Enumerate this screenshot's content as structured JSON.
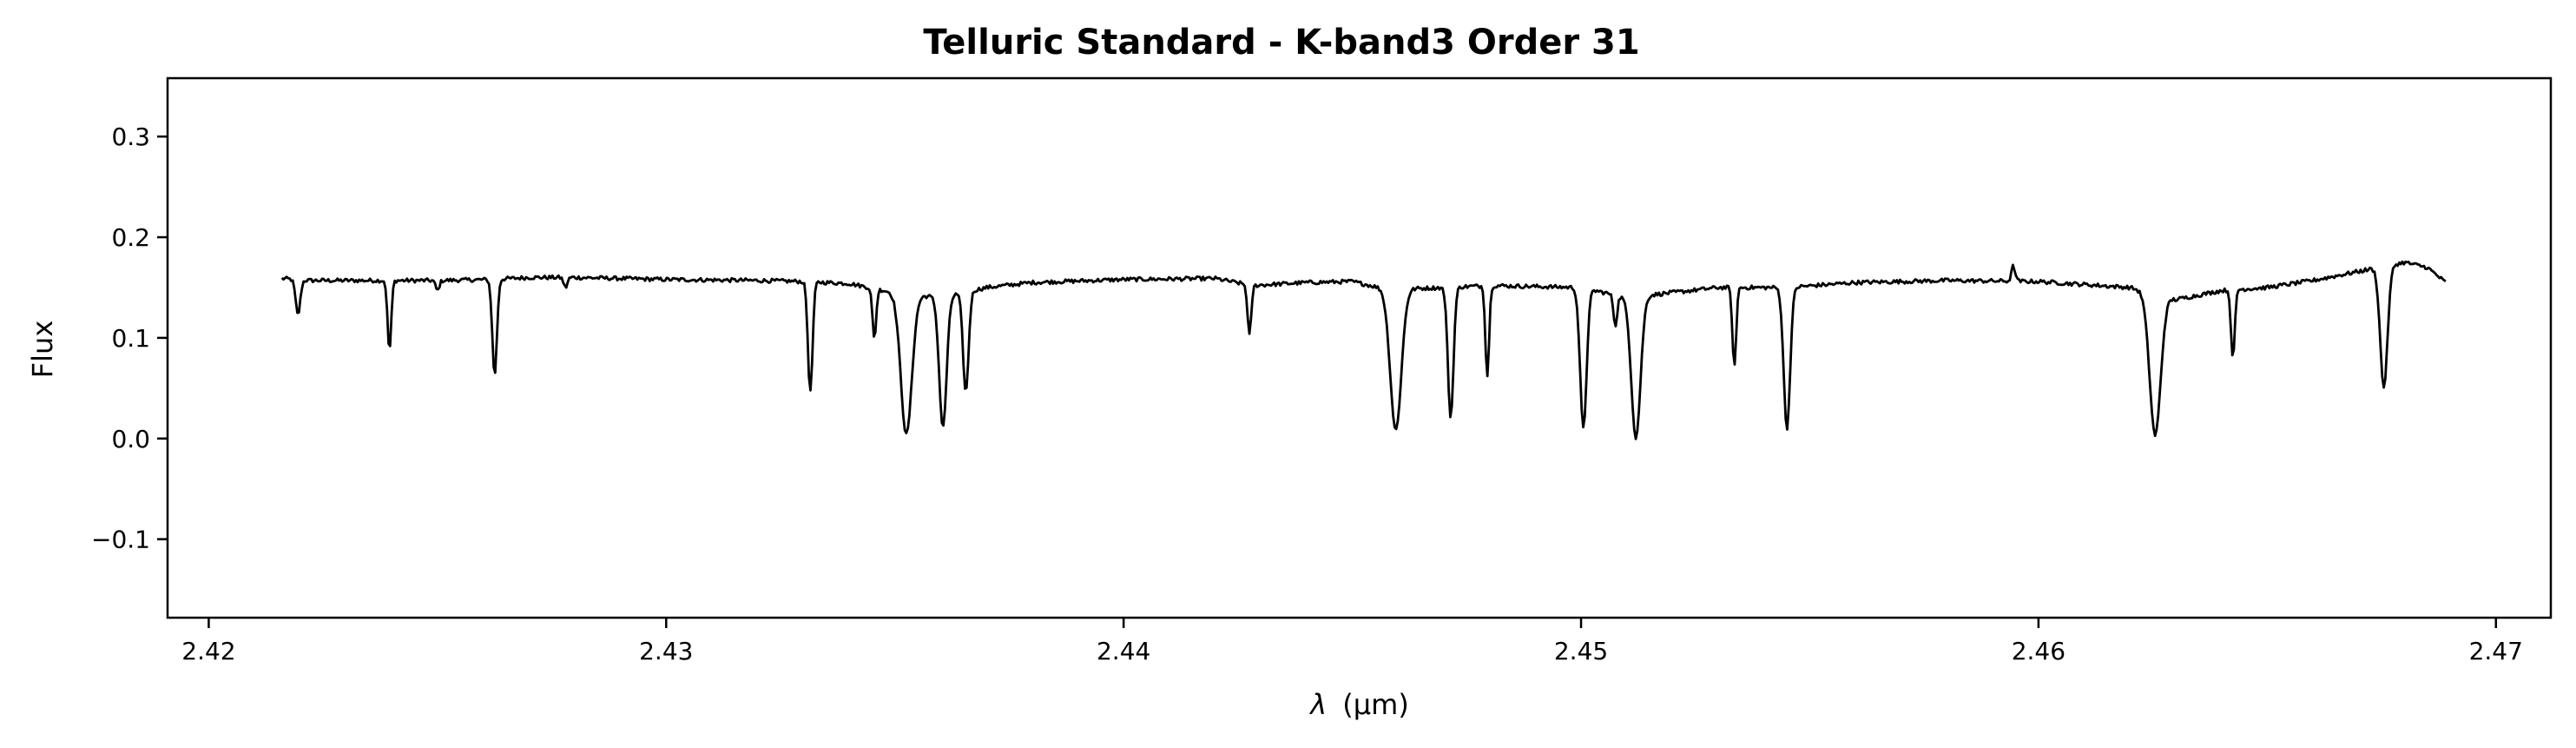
{
  "chart_data": {
    "type": "line",
    "title": "Telluric Standard - K-band3 Order 31",
    "xlabel_symbol": "λ",
    "xlabel_unit": "(μm)",
    "ylabel": "Flux",
    "xlim": [
      2.4191,
      2.4712
    ],
    "ylim": [
      -0.178,
      0.358
    ],
    "x_ticks": [
      2.42,
      2.43,
      2.44,
      2.45,
      2.46,
      2.47
    ],
    "x_tick_labels": [
      "2.42",
      "2.43",
      "2.44",
      "2.45",
      "2.46",
      "2.47"
    ],
    "y_ticks": [
      -0.1,
      0.0,
      0.1,
      0.2,
      0.3
    ],
    "y_tick_labels": [
      "−0.1",
      "0.0",
      "0.1",
      "0.2",
      "0.3"
    ],
    "grid": false,
    "line_color": "#000000",
    "series": [
      {
        "x_range": [
          2.4216,
          2.4689
        ],
        "continuum": [
          [
            2.4216,
            0.159
          ],
          [
            2.4222,
            0.157
          ],
          [
            2.423,
            0.157
          ],
          [
            2.425,
            0.157
          ],
          [
            2.4262,
            0.158
          ],
          [
            2.427,
            0.16
          ],
          [
            2.428,
            0.16
          ],
          [
            2.43,
            0.158
          ],
          [
            2.432,
            0.157
          ],
          [
            2.433,
            0.156
          ],
          [
            2.434,
            0.154
          ],
          [
            2.435,
            0.145
          ],
          [
            2.436,
            0.14
          ],
          [
            2.437,
            0.15
          ],
          [
            2.438,
            0.155
          ],
          [
            2.44,
            0.158
          ],
          [
            2.442,
            0.159
          ],
          [
            2.4428,
            0.152
          ],
          [
            2.444,
            0.155
          ],
          [
            2.445,
            0.156
          ],
          [
            2.4458,
            0.148
          ],
          [
            2.447,
            0.15
          ],
          [
            2.448,
            0.152
          ],
          [
            2.45,
            0.15
          ],
          [
            2.451,
            0.14
          ],
          [
            2.452,
            0.145
          ],
          [
            2.453,
            0.15
          ],
          [
            2.4545,
            0.15
          ],
          [
            2.456,
            0.155
          ],
          [
            2.458,
            0.157
          ],
          [
            2.46,
            0.156
          ],
          [
            2.462,
            0.15
          ],
          [
            2.463,
            0.138
          ],
          [
            2.464,
            0.147
          ],
          [
            2.465,
            0.15
          ],
          [
            2.466,
            0.157
          ],
          [
            2.468,
            0.175
          ],
          [
            2.4685,
            0.17
          ],
          [
            2.4689,
            0.155
          ]
        ],
        "absorption_lines": [
          {
            "center": 2.42195,
            "depth": 0.035,
            "width": 5e-05
          },
          {
            "center": 2.42395,
            "depth": 0.07,
            "width": 4e-05
          },
          {
            "center": 2.425,
            "depth": 0.01,
            "width": 4e-05
          },
          {
            "center": 2.42625,
            "depth": 0.095,
            "width": 5e-05
          },
          {
            "center": 2.4278,
            "depth": 0.01,
            "width": 4e-05
          },
          {
            "center": 2.43315,
            "depth": 0.11,
            "width": 5e-05
          },
          {
            "center": 2.43455,
            "depth": 0.05,
            "width": 4e-05
          },
          {
            "center": 2.43525,
            "depth": 0.14,
            "width": 0.00012
          },
          {
            "center": 2.43605,
            "depth": 0.13,
            "width": 8e-05
          },
          {
            "center": 2.43655,
            "depth": 0.1,
            "width": 6e-05
          },
          {
            "center": 2.44275,
            "depth": 0.05,
            "width": 4e-05
          },
          {
            "center": 2.44595,
            "depth": 0.14,
            "width": 0.00012
          },
          {
            "center": 2.44715,
            "depth": 0.13,
            "width": 6e-05
          },
          {
            "center": 2.44795,
            "depth": 0.09,
            "width": 4e-05
          },
          {
            "center": 2.45005,
            "depth": 0.14,
            "width": 7e-05
          },
          {
            "center": 2.45075,
            "depth": 0.03,
            "width": 4e-05
          },
          {
            "center": 2.4512,
            "depth": 0.14,
            "width": 0.0001
          },
          {
            "center": 2.45335,
            "depth": 0.08,
            "width": 4e-05
          },
          {
            "center": 2.4545,
            "depth": 0.14,
            "width": 7e-05
          },
          {
            "center": 2.46255,
            "depth": 0.14,
            "width": 0.00012
          },
          {
            "center": 2.46425,
            "depth": 0.07,
            "width": 4e-05
          },
          {
            "center": 2.46755,
            "depth": 0.12,
            "width": 8e-05
          }
        ],
        "emission_features": [
          {
            "center": 2.45945,
            "height": 0.015,
            "width": 4e-05
          }
        ]
      }
    ]
  }
}
